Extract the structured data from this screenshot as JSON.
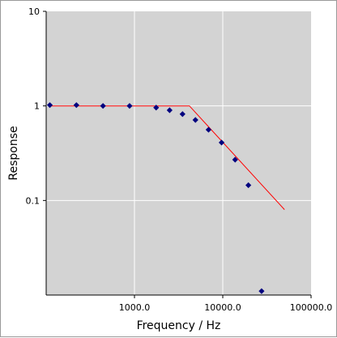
{
  "chart_data": {
    "type": "scatter",
    "xlabel": "Frequency / Hz",
    "ylabel": "Response",
    "x_scale": "log",
    "y_scale": "log",
    "xlim": [
      100,
      100000
    ],
    "ylim": [
      0.01,
      10
    ],
    "x_ticks": [
      {
        "value": 1000,
        "label": "1000.0"
      },
      {
        "value": 10000,
        "label": "10000.0"
      },
      {
        "value": 100000,
        "label": "100000.0"
      }
    ],
    "y_ticks": [
      {
        "value": 0.1,
        "label": "0.1"
      },
      {
        "value": 1,
        "label": "1"
      },
      {
        "value": 10,
        "label": "10"
      }
    ],
    "grid": true,
    "series": [
      {
        "kind": "points",
        "marker": "diamond",
        "color": "#00007f",
        "points": [
          [
            110,
            1.02
          ],
          [
            220,
            1.02
          ],
          [
            440,
            1.0
          ],
          [
            880,
            1.0
          ],
          [
            1760,
            0.96
          ],
          [
            2500,
            0.9
          ],
          [
            3500,
            0.82
          ],
          [
            4900,
            0.71
          ],
          [
            6900,
            0.56
          ],
          [
            9700,
            0.41
          ],
          [
            13800,
            0.27
          ],
          [
            19500,
            0.145
          ],
          [
            27500,
            0.011
          ]
        ]
      },
      {
        "kind": "line",
        "color": "#ff0000",
        "points": [
          [
            110,
            1.0
          ],
          [
            4200,
            1.0
          ],
          [
            50000,
            0.08
          ]
        ]
      }
    ],
    "colors": {
      "plot_background": "#d3d3d3",
      "grid": "#ffffff"
    }
  }
}
